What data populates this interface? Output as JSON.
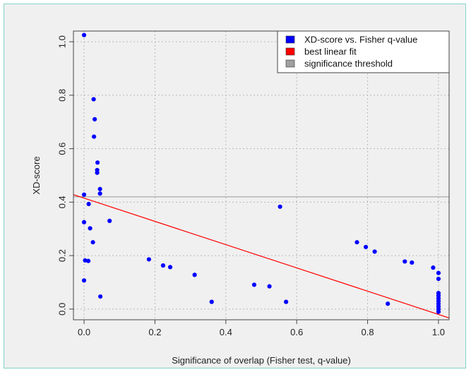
{
  "chart_data": {
    "type": "scatter",
    "xlabel": "Significance of overlap (Fisher test, q-value)",
    "ylabel": "XD-score",
    "xlim": [
      -0.03,
      1.03
    ],
    "ylim": [
      -0.04,
      1.04
    ],
    "x_ticks": [
      0.0,
      0.2,
      0.4,
      0.6,
      0.8,
      1.0
    ],
    "x_tick_labels": [
      "0.0",
      "0.2",
      "0.4",
      "0.6",
      "0.8",
      "1.0"
    ],
    "y_ticks": [
      0.0,
      0.2,
      0.4,
      0.6,
      0.8,
      1.0
    ],
    "y_tick_labels": [
      "0.0",
      "0.2",
      "0.4",
      "0.6",
      "0.8",
      "1.0"
    ],
    "grid": true,
    "legend_position": "top-right",
    "legend": [
      {
        "label": "XD-score vs. Fisher q-value",
        "color": "#0000ff"
      },
      {
        "label": "best linear fit",
        "color": "#ff0000"
      },
      {
        "label": "significance threshold",
        "color": "#a0a0a0"
      }
    ],
    "series": [
      {
        "color": "#0000ff",
        "points": [
          [
            0.0,
            1.025
          ],
          [
            0.027,
            0.785
          ],
          [
            0.03,
            0.71
          ],
          [
            0.028,
            0.645
          ],
          [
            0.038,
            0.548
          ],
          [
            0.037,
            0.52
          ],
          [
            0.037,
            0.51
          ],
          [
            0.045,
            0.449
          ],
          [
            0.045,
            0.432
          ],
          [
            0.0,
            0.428
          ],
          [
            0.013,
            0.393
          ],
          [
            0.0,
            0.325
          ],
          [
            0.017,
            0.302
          ],
          [
            0.025,
            0.25
          ],
          [
            0.003,
            0.182
          ],
          [
            0.012,
            0.18
          ],
          [
            0.0,
            0.107
          ],
          [
            0.046,
            0.047
          ],
          [
            0.072,
            0.33
          ],
          [
            0.183,
            0.186
          ],
          [
            0.223,
            0.163
          ],
          [
            0.243,
            0.157
          ],
          [
            0.312,
            0.128
          ],
          [
            0.36,
            0.027
          ],
          [
            0.48,
            0.091
          ],
          [
            0.523,
            0.085
          ],
          [
            0.553,
            0.383
          ],
          [
            0.57,
            0.027
          ],
          [
            0.77,
            0.25
          ],
          [
            0.795,
            0.232
          ],
          [
            0.82,
            0.215
          ],
          [
            0.857,
            0.02
          ],
          [
            0.905,
            0.178
          ],
          [
            0.925,
            0.174
          ],
          [
            0.985,
            0.155
          ],
          [
            1.0,
            0.135
          ],
          [
            1.0,
            0.113
          ],
          [
            1.0,
            0.06
          ],
          [
            1.0,
            0.05
          ],
          [
            1.0,
            0.04
          ],
          [
            1.0,
            0.03
          ],
          [
            1.0,
            0.02
          ],
          [
            1.0,
            0.01
          ],
          [
            1.0,
            0.0
          ],
          [
            1.0,
            -0.01
          ]
        ]
      }
    ],
    "fit_line": {
      "color": "#ff0000",
      "intercept": 0.415,
      "slope": -0.435
    },
    "threshold": {
      "color": "#a0a0a0",
      "y": 0.42
    },
    "background": "#f0f0f0"
  }
}
